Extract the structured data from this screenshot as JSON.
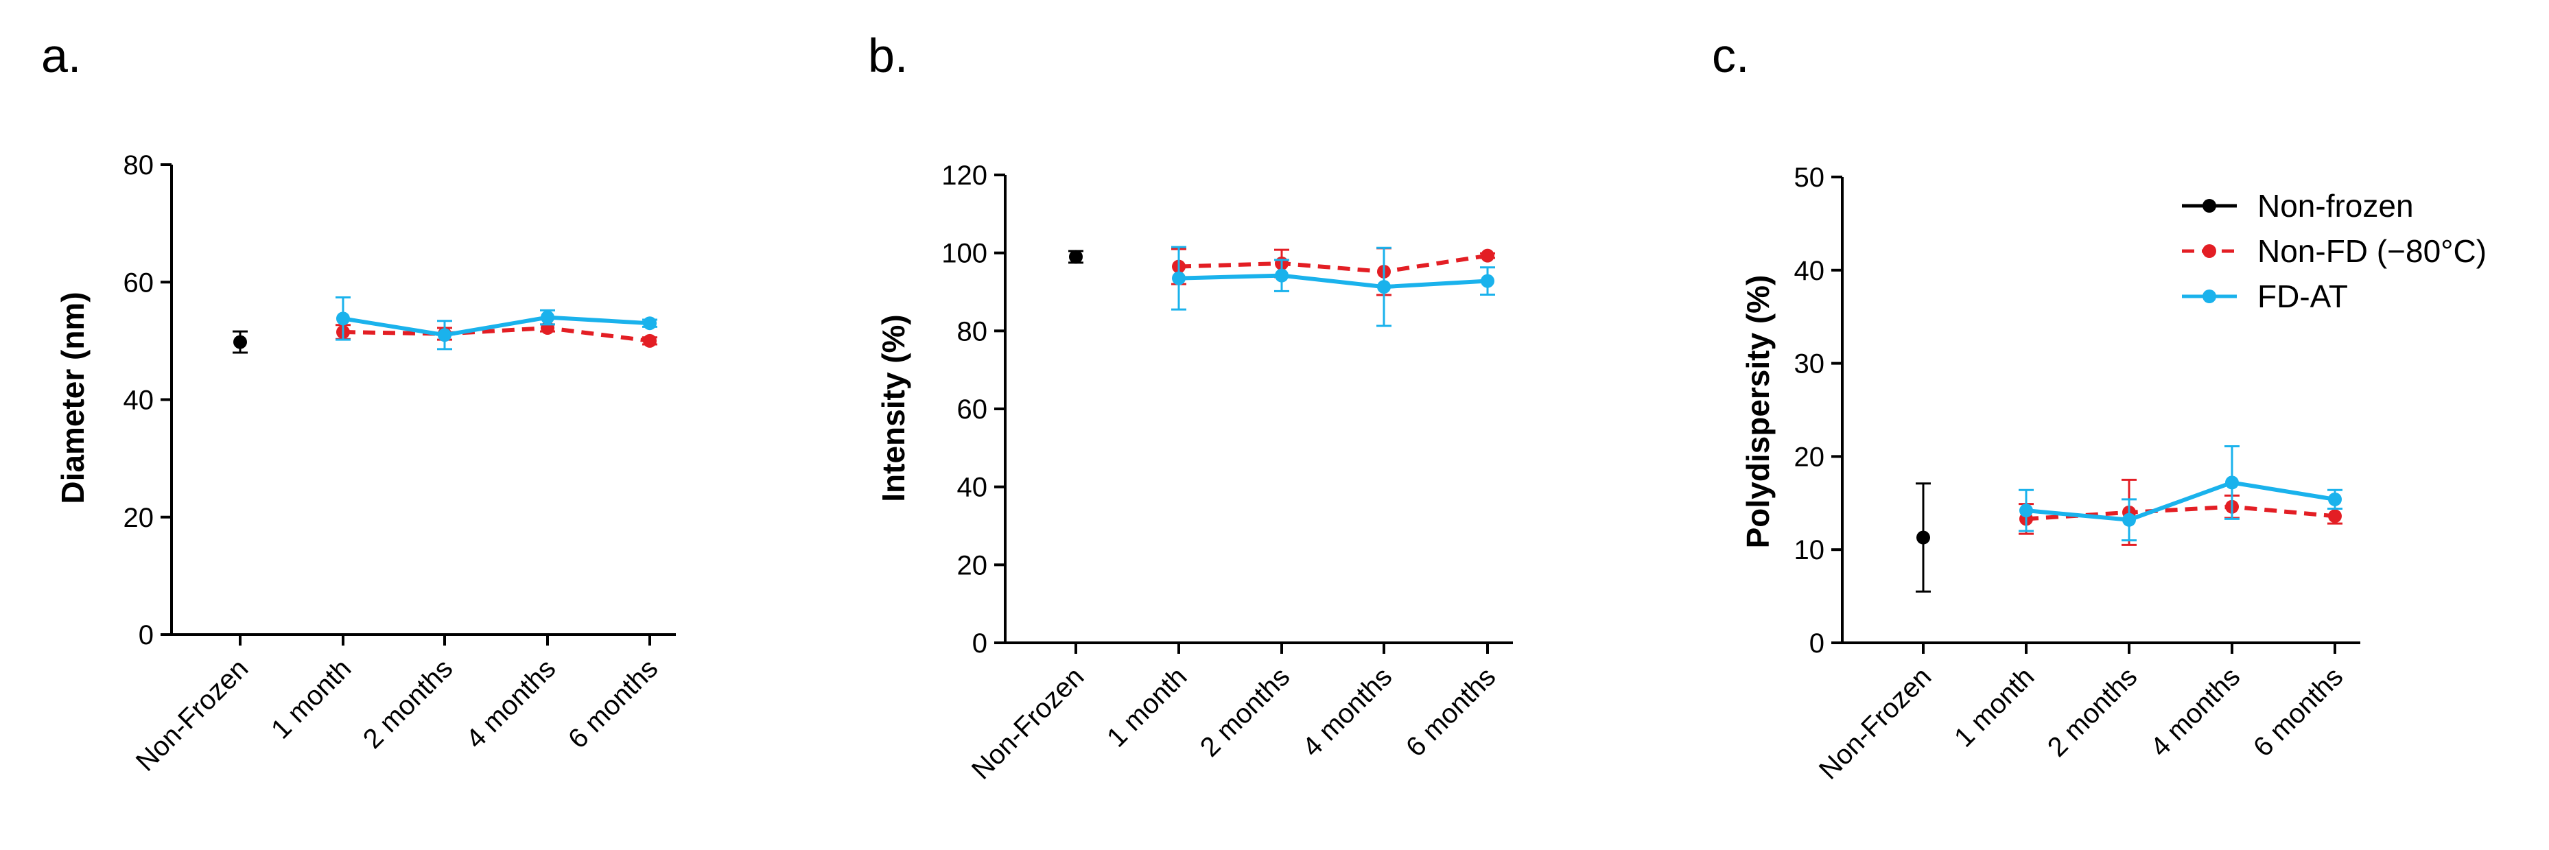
{
  "colors": {
    "non_frozen": "#000000",
    "non_fd": "#e31e24",
    "fd_at": "#1ab2ec"
  },
  "legend": [
    {
      "key": "non_frozen",
      "label": "Non-frozen",
      "style": "solid"
    },
    {
      "key": "non_fd",
      "label": "Non-FD (−80°C)",
      "style": "dashed"
    },
    {
      "key": "fd_at",
      "label": "FD-AT",
      "style": "solid"
    }
  ],
  "chart_data": [
    {
      "panel": "a.",
      "type": "line",
      "ylabel": "Diameter (nm)",
      "xlabel": "",
      "categories": [
        "Non-Frozen",
        "1 month",
        "2 months",
        "4 months",
        "6 months"
      ],
      "ylim": [
        0,
        80
      ],
      "yticks": [
        0,
        20,
        40,
        60,
        80
      ],
      "grid": false,
      "series": [
        {
          "key": "non_frozen",
          "name": "Non-frozen",
          "x": [
            0
          ],
          "values": [
            49.8
          ],
          "err": [
            1.8
          ]
        },
        {
          "key": "non_fd",
          "name": "Non-FD (−80°C)",
          "x": [
            1,
            2,
            3,
            4
          ],
          "values": [
            51.5,
            51.2,
            52.2,
            50.0
          ],
          "err": [
            1.2,
            1.0,
            0.6,
            0.6
          ]
        },
        {
          "key": "fd_at",
          "name": "FD-AT",
          "x": [
            1,
            2,
            3,
            4
          ],
          "values": [
            53.8,
            51.0,
            54.0,
            53.0
          ],
          "err": [
            3.6,
            2.4,
            1.2,
            0.6
          ]
        }
      ]
    },
    {
      "panel": "b.",
      "type": "line",
      "ylabel": "Intensity (%)",
      "xlabel": "",
      "categories": [
        "Non-Frozen",
        "1 month",
        "2 months",
        "4 months",
        "6 months"
      ],
      "ylim": [
        0,
        120
      ],
      "yticks": [
        0,
        20,
        40,
        60,
        80,
        100,
        120
      ],
      "grid": false,
      "series": [
        {
          "key": "non_frozen",
          "name": "Non-frozen",
          "x": [
            0
          ],
          "values": [
            99.0
          ],
          "err": [
            1.5
          ]
        },
        {
          "key": "non_fd",
          "name": "Non-FD (−80°C)",
          "x": [
            1,
            2,
            3,
            4
          ],
          "values": [
            96.5,
            97.3,
            95.2,
            99.3
          ],
          "err": [
            4.5,
            3.5,
            6.0,
            0.6
          ]
        },
        {
          "key": "fd_at",
          "name": "FD-AT",
          "x": [
            1,
            2,
            3,
            4
          ],
          "values": [
            93.5,
            94.2,
            91.3,
            92.8
          ],
          "err": [
            8.0,
            4.0,
            10.0,
            3.5
          ]
        }
      ]
    },
    {
      "panel": "c.",
      "type": "line",
      "ylabel": "Polydispersity (%)",
      "xlabel": "",
      "categories": [
        "Non-Frozen",
        "1 month",
        "2 months",
        "4 months",
        "6 months"
      ],
      "ylim": [
        0,
        50
      ],
      "yticks": [
        0,
        10,
        20,
        30,
        40,
        50
      ],
      "grid": false,
      "legend_position": "top-right",
      "series": [
        {
          "key": "non_frozen",
          "name": "Non-frozen",
          "x": [
            0
          ],
          "values": [
            11.3
          ],
          "err": [
            5.8
          ]
        },
        {
          "key": "non_fd",
          "name": "Non-FD (−80°C)",
          "x": [
            1,
            2,
            3,
            4
          ],
          "values": [
            13.3,
            14.0,
            14.6,
            13.6
          ],
          "err": [
            1.6,
            3.5,
            1.2,
            0.8
          ]
        },
        {
          "key": "fd_at",
          "name": "FD-AT",
          "x": [
            1,
            2,
            3,
            4
          ],
          "values": [
            14.2,
            13.2,
            17.2,
            15.4
          ],
          "err": [
            2.2,
            2.2,
            3.9,
            1.0
          ]
        }
      ]
    }
  ]
}
